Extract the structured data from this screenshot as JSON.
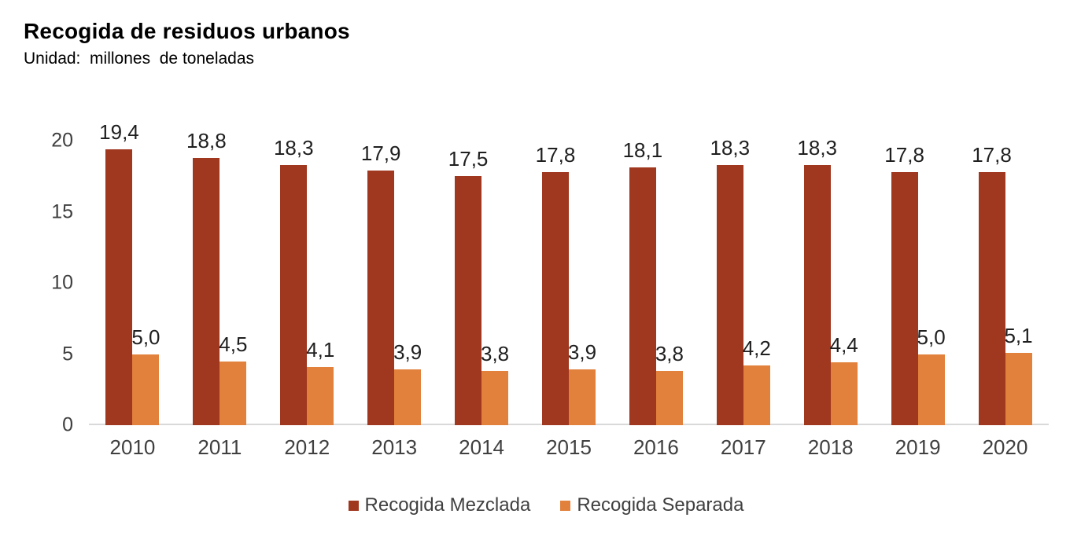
{
  "chart_data": {
    "type": "bar",
    "title": "Recogida de residuos urbanos",
    "subtitle": "Unidad:  millones  de toneladas",
    "categories": [
      "2010",
      "2011",
      "2012",
      "2013",
      "2014",
      "2015",
      "2016",
      "2017",
      "2018",
      "2019",
      "2020"
    ],
    "series": [
      {
        "name": "Recogida Mezclada",
        "color": "#A0371F",
        "values": [
          19.4,
          18.8,
          18.3,
          17.9,
          17.5,
          17.8,
          18.1,
          18.3,
          18.3,
          17.8,
          17.8
        ]
      },
      {
        "name": "Recogida Separada",
        "color": "#E2813B",
        "values": [
          5.0,
          4.5,
          4.1,
          3.9,
          3.8,
          3.9,
          3.8,
          4.2,
          4.4,
          5.0,
          5.1
        ]
      }
    ],
    "y_axis": {
      "min": 0,
      "max": 20,
      "ticks": [
        0,
        5,
        10,
        15,
        20
      ]
    },
    "xlabel": "",
    "ylabel": "",
    "grid": false,
    "data_labels": true,
    "legend_position": "bottom",
    "number_format": {
      "decimals": 1,
      "decimal_separator": ","
    }
  },
  "colors": {
    "axis_line": "#D9D9D9",
    "tick_label": "#404040",
    "data_label": "#1F1F1F",
    "title": "#000000"
  }
}
